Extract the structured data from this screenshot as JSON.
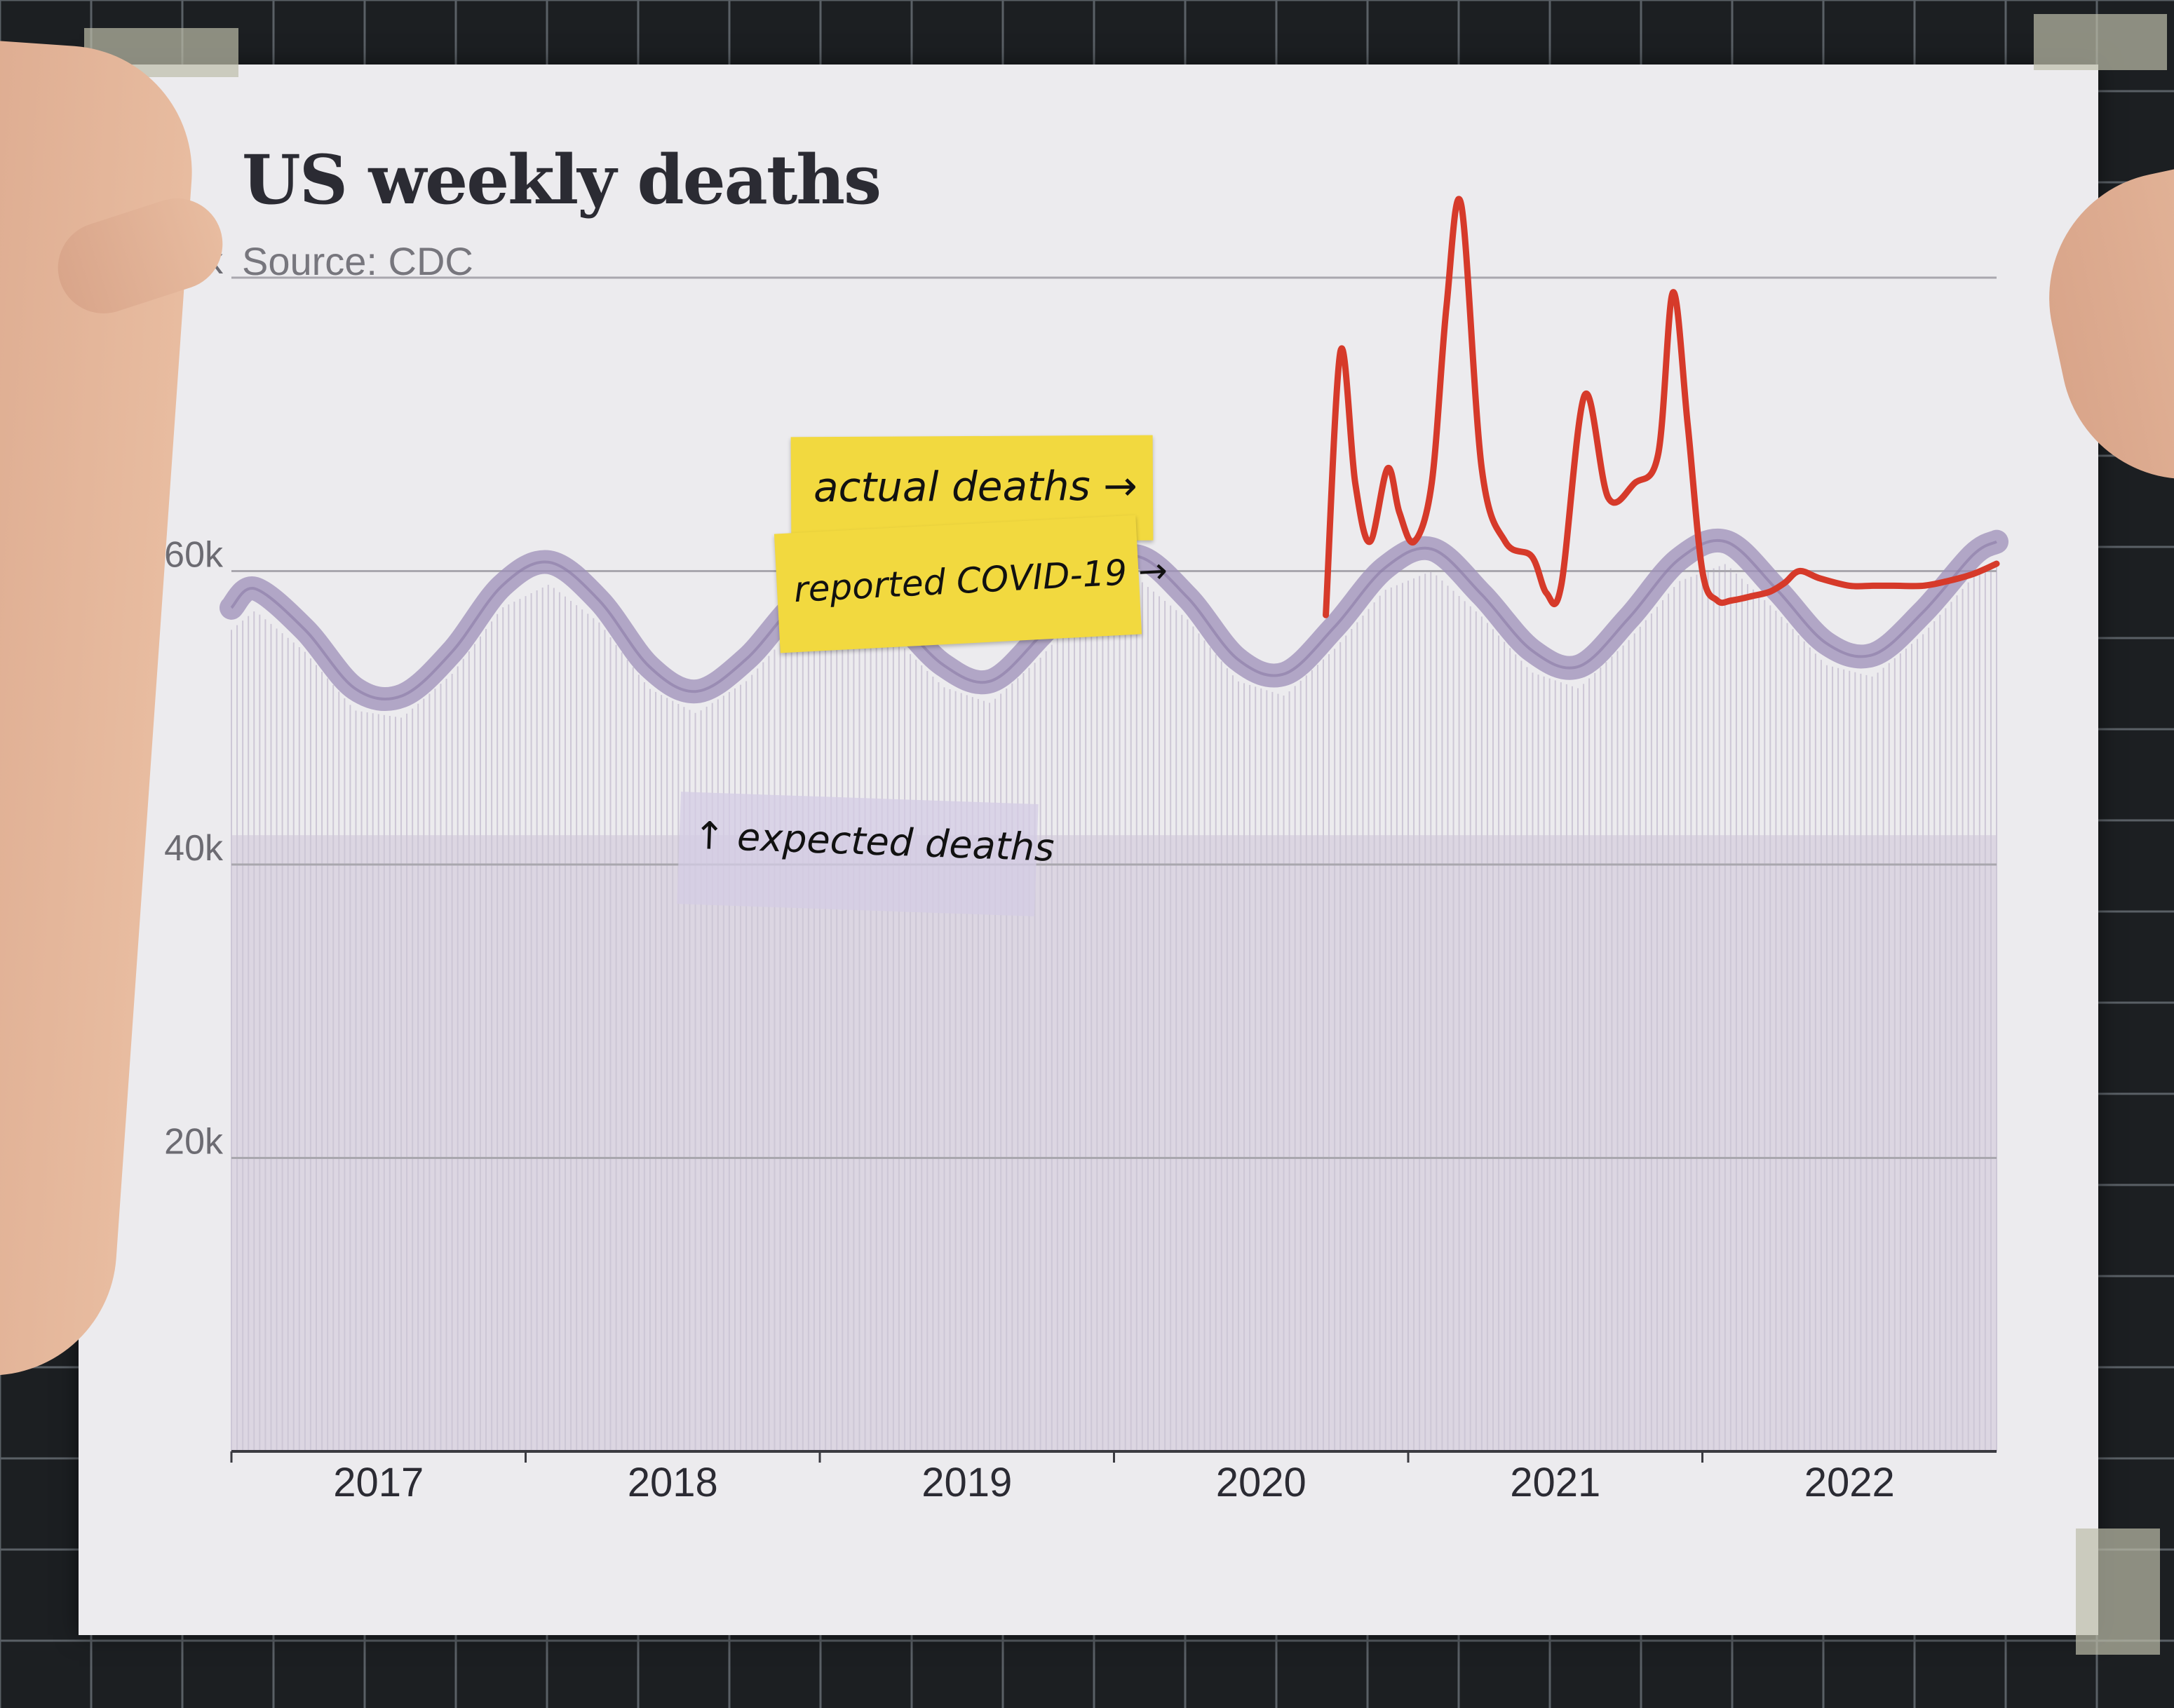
{
  "chart_data": {
    "type": "line",
    "title": "US weekly deaths",
    "subtitle": "Source: CDC",
    "xlabel": "",
    "ylabel": "",
    "x_range": [
      2016.5,
      2022.5
    ],
    "ylim": [
      0,
      80000
    ],
    "y_ticks": [
      {
        "value": 20000,
        "label": "20k"
      },
      {
        "value": 40000,
        "label": "40k"
      },
      {
        "value": 60000,
        "label": "60k"
      },
      {
        "value": 80000,
        "label": "80k"
      }
    ],
    "x_ticks": [
      {
        "value": 2017,
        "label": "2017"
      },
      {
        "value": 2018,
        "label": "2018"
      },
      {
        "value": 2019,
        "label": "2019"
      },
      {
        "value": 2020,
        "label": "2020"
      },
      {
        "value": 2021,
        "label": "2021"
      },
      {
        "value": 2022,
        "label": "2022"
      }
    ],
    "grid": true,
    "series": [
      {
        "name": "expected deaths",
        "color": "#9d8fb8",
        "x": [
          2016.5,
          2016.58,
          2016.75,
          2016.92,
          2017.08,
          2017.25,
          2017.42,
          2017.58,
          2017.75,
          2017.92,
          2018.08,
          2018.25,
          2018.42,
          2018.58,
          2018.75,
          2018.92,
          2019.08,
          2019.25,
          2019.42,
          2019.58,
          2019.75,
          2019.92,
          2020.08,
          2020.25,
          2020.42,
          2020.58,
          2020.75,
          2020.92,
          2021.08,
          2021.25,
          2021.42,
          2021.58,
          2021.75,
          2021.92,
          2022.08,
          2022.25,
          2022.42,
          2022.5
        ],
        "y": [
          57500,
          58800,
          56000,
          52000,
          51500,
          54500,
          59000,
          60600,
          58000,
          53500,
          51800,
          54000,
          57800,
          59500,
          57000,
          53600,
          52500,
          55600,
          59500,
          61000,
          58200,
          54000,
          53000,
          56200,
          60200,
          61500,
          58400,
          54600,
          53500,
          56800,
          60800,
          62000,
          58800,
          55100,
          54300,
          57200,
          61100,
          62000
        ]
      },
      {
        "name": "actual deaths",
        "color": "#d63a2a",
        "x": [
          2020.22,
          2020.27,
          2020.32,
          2020.37,
          2020.43,
          2020.47,
          2020.52,
          2020.58,
          2020.63,
          2020.68,
          2020.75,
          2020.83,
          2020.92,
          2020.97,
          2021.02,
          2021.1,
          2021.18,
          2021.27,
          2021.35,
          2021.4,
          2021.45,
          2021.5,
          2021.55,
          2021.6,
          2021.67,
          2021.73,
          2021.78,
          2021.83,
          2021.9,
          2022.0,
          2022.08,
          2022.15,
          2022.25,
          2022.33,
          2022.42,
          2022.5
        ],
        "y": [
          57000,
          75000,
          66000,
          62000,
          67000,
          64000,
          62000,
          66000,
          78000,
          85000,
          67000,
          62000,
          61000,
          58500,
          59000,
          72000,
          65000,
          66000,
          68000,
          79000,
          70000,
          60000,
          58000,
          58000,
          58300,
          58600,
          59200,
          60000,
          59500,
          59000,
          59000,
          59000,
          59000,
          59300,
          59800,
          60500
        ]
      }
    ],
    "annotations": [
      {
        "text": "actual deaths →",
        "style": "yellow-sticky-note"
      },
      {
        "text": "reported COVID-19 →",
        "style": "yellow-sticky-note"
      },
      {
        "text": "↑ expected deaths",
        "style": "purple-sticky-note"
      }
    ]
  }
}
